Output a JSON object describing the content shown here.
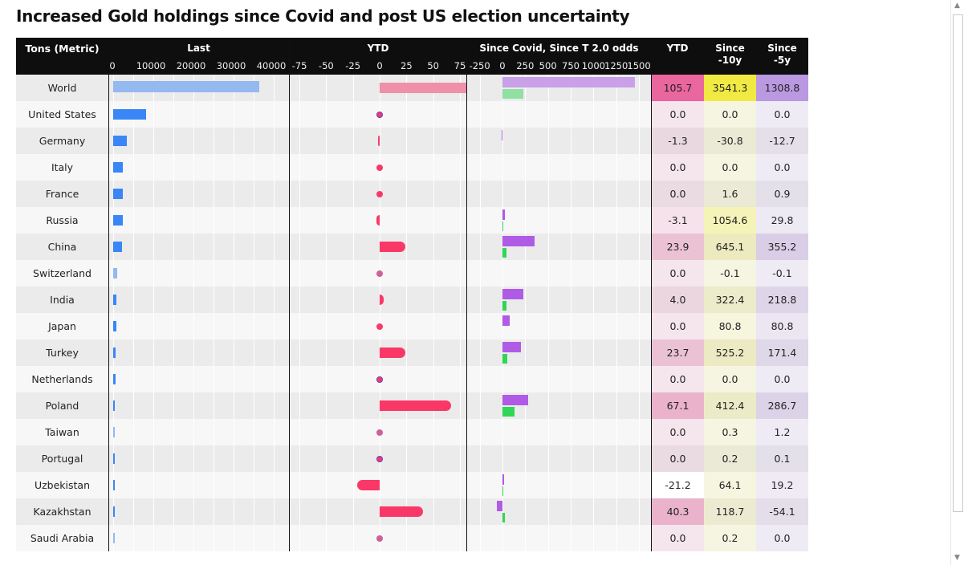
{
  "title": "Increased Gold holdings since Covid and post US election uncertainty",
  "headers": {
    "name": "Tons (Metric)",
    "last": "Last",
    "ytd": "YTD",
    "covid": "Since Covid, Since T 2.0 odds",
    "t_ytd": "YTD",
    "t_10y_1": "Since",
    "t_10y_2": "-10y",
    "t_5y_1": "Since",
    "t_5y_2": "-5y"
  },
  "colors": {
    "last_bar": "#3a86f7",
    "last_bar_light": "#94b8f0",
    "ytd_bar": "#fa3868",
    "ytd_world": "#f08fa8",
    "covid_purple": "#b05be6",
    "covid_purple_world": "#caa0e8",
    "covid_green": "#30d655",
    "covid_green_world": "#90e0a2",
    "ytd_heat": "#e8609a",
    "y10_heat": "#f0ea40",
    "y5_heat": "#b896e0"
  },
  "chart_data": [
    {
      "type": "bar",
      "title": "Last",
      "ticks": [
        0,
        10000,
        20000,
        30000,
        40000
      ],
      "xlim": [
        -1000,
        44000
      ],
      "values": [
        36400,
        8130,
        3350,
        2450,
        2440,
        2330,
        2260,
        1040,
        850,
        846,
        600,
        612,
        450,
        422,
        383,
        380,
        300,
        323
      ]
    },
    {
      "type": "bar",
      "title": "YTD",
      "ticks": [
        -75,
        -50,
        -25,
        0,
        25,
        50,
        75
      ],
      "xlim": [
        -84,
        81.75
      ],
      "values": [
        105.7,
        0.0,
        -1.3,
        0.0,
        0.0,
        -3.1,
        23.9,
        0.0,
        4.0,
        0.0,
        23.7,
        0.0,
        67.1,
        0.0,
        0.0,
        -21.2,
        40.3,
        0.0
      ]
    },
    {
      "type": "bar",
      "title": "Since Covid, Since T 2.0 odds",
      "ticks": [
        -250,
        0,
        250,
        500,
        750,
        1000,
        1250,
        1500
      ],
      "xlim": [
        -388,
        1641
      ],
      "series": [
        {
          "name": "Since Covid",
          "values": [
            1460,
            0,
            -10,
            0,
            0,
            25,
            350,
            0,
            230,
            80,
            200,
            0,
            280,
            0,
            0,
            20,
            -60,
            0
          ]
        },
        {
          "name": "Since T 2.0 odds",
          "values": [
            230,
            0,
            0,
            0,
            0,
            5,
            40,
            0,
            40,
            0,
            55,
            0,
            130,
            0,
            0,
            3,
            25,
            0
          ]
        }
      ]
    }
  ],
  "rows": [
    {
      "name": "World",
      "ytd": "105.7",
      "y10": "3541.3",
      "y5": "1308.8"
    },
    {
      "name": "United States",
      "ytd": "0.0",
      "y10": "0.0",
      "y5": "0.0"
    },
    {
      "name": "Germany",
      "ytd": "-1.3",
      "y10": "-30.8",
      "y5": "-12.7"
    },
    {
      "name": "Italy",
      "ytd": "0.0",
      "y10": "0.0",
      "y5": "0.0"
    },
    {
      "name": "France",
      "ytd": "0.0",
      "y10": "1.6",
      "y5": "0.9"
    },
    {
      "name": "Russia",
      "ytd": "-3.1",
      "y10": "1054.6",
      "y5": "29.8"
    },
    {
      "name": "China",
      "ytd": "23.9",
      "y10": "645.1",
      "y5": "355.2"
    },
    {
      "name": "Switzerland",
      "ytd": "0.0",
      "y10": "-0.1",
      "y5": "-0.1"
    },
    {
      "name": "India",
      "ytd": "4.0",
      "y10": "322.4",
      "y5": "218.8"
    },
    {
      "name": "Japan",
      "ytd": "0.0",
      "y10": "80.8",
      "y5": "80.8"
    },
    {
      "name": "Turkey",
      "ytd": "23.7",
      "y10": "525.2",
      "y5": "171.4"
    },
    {
      "name": "Netherlands",
      "ytd": "0.0",
      "y10": "0.0",
      "y5": "0.0"
    },
    {
      "name": "Poland",
      "ytd": "67.1",
      "y10": "412.4",
      "y5": "286.7"
    },
    {
      "name": "Taiwan",
      "ytd": "0.0",
      "y10": "0.3",
      "y5": "1.2"
    },
    {
      "name": "Portugal",
      "ytd": "0.0",
      "y10": "0.2",
      "y5": "0.1"
    },
    {
      "name": "Uzbekistan",
      "ytd": "-21.2",
      "y10": "64.1",
      "y5": "19.2"
    },
    {
      "name": "Kazakhstan",
      "ytd": "40.3",
      "y10": "118.7",
      "y5": "-54.1"
    },
    {
      "name": "Saudi Arabia",
      "ytd": "0.0",
      "y10": "0.2",
      "y5": "0.0"
    }
  ]
}
